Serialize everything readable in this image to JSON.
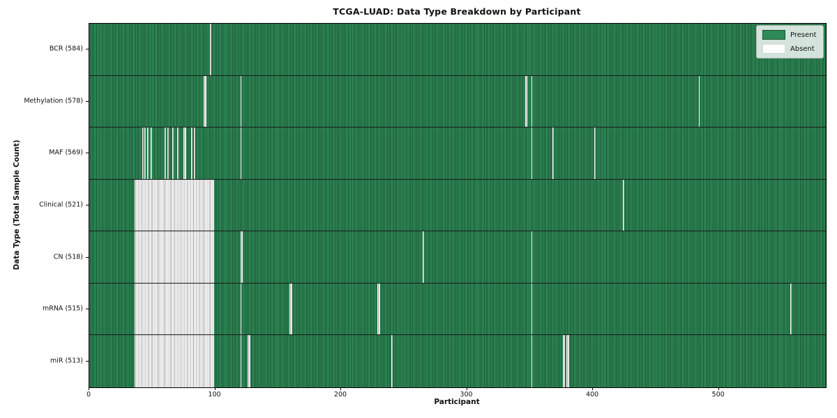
{
  "chart_data": {
    "type": "heatmap",
    "title": "TCGA-LUAD: Data Type Breakdown by Participant",
    "xlabel": "Participant",
    "ylabel": "Data Type (Total Sample Count)",
    "x_ticks": [
      0,
      100,
      200,
      300,
      400,
      500
    ],
    "x_range": [
      0,
      585
    ],
    "n_participants": 585,
    "grid": false,
    "legend": {
      "position": "upper right",
      "entries": [
        {
          "label": "Present",
          "color": "#2e8b57",
          "edge": "#1c5434"
        },
        {
          "label": "Absent",
          "color": "#ffffff",
          "edge": "#d6d6d6"
        }
      ]
    },
    "colors": {
      "present": "#2e8b57",
      "present_edge": "#1c5434",
      "absent": "#ffffff",
      "absent_edge": "#a6a6a6",
      "row_divider": "#1a1a1a",
      "plot_border": "#000000"
    },
    "rows": [
      {
        "data_type": "BCR",
        "label": "BCR (584)",
        "present_count": 584,
        "absent_count": 1,
        "absent_ranges": [
          [
            96,
            96
          ]
        ]
      },
      {
        "data_type": "Methylation",
        "label": "Methylation (578)",
        "present_count": 578,
        "absent_count": 7,
        "absent_ranges": [
          [
            91,
            92
          ],
          [
            120,
            120
          ],
          [
            346,
            347
          ],
          [
            351,
            351
          ],
          [
            484,
            484
          ]
        ]
      },
      {
        "data_type": "MAF",
        "label": "MAF (569)",
        "present_count": 569,
        "absent_count": 16,
        "absent_ranges": [
          [
            42,
            42
          ],
          [
            44,
            44
          ],
          [
            46,
            46
          ],
          [
            49,
            49
          ],
          [
            60,
            60
          ],
          [
            62,
            62
          ],
          [
            66,
            66
          ],
          [
            70,
            70
          ],
          [
            75,
            76
          ],
          [
            81,
            81
          ],
          [
            83,
            83
          ],
          [
            120,
            120
          ],
          [
            351,
            351
          ],
          [
            368,
            368
          ],
          [
            401,
            401
          ]
        ]
      },
      {
        "data_type": "Clinical",
        "label": "Clinical (521)",
        "present_count": 521,
        "absent_count": 64,
        "absent_ranges": [
          [
            36,
            98
          ],
          [
            424,
            424
          ]
        ]
      },
      {
        "data_type": "CN",
        "label": "CN (518)",
        "present_count": 518,
        "absent_count": 67,
        "absent_ranges": [
          [
            36,
            98
          ],
          [
            120,
            121
          ],
          [
            265,
            265
          ],
          [
            351,
            351
          ]
        ]
      },
      {
        "data_type": "mRNA",
        "label": "mRNA (515)",
        "present_count": 515,
        "absent_count": 70,
        "absent_ranges": [
          [
            36,
            98
          ],
          [
            120,
            120
          ],
          [
            159,
            160
          ],
          [
            229,
            230
          ],
          [
            351,
            351
          ],
          [
            557,
            557
          ]
        ]
      },
      {
        "data_type": "miR",
        "label": "miR (513)",
        "present_count": 513,
        "absent_count": 72,
        "absent_ranges": [
          [
            36,
            98
          ],
          [
            120,
            120
          ],
          [
            126,
            127
          ],
          [
            240,
            240
          ],
          [
            351,
            351
          ],
          [
            376,
            377
          ],
          [
            379,
            380
          ]
        ]
      }
    ]
  }
}
